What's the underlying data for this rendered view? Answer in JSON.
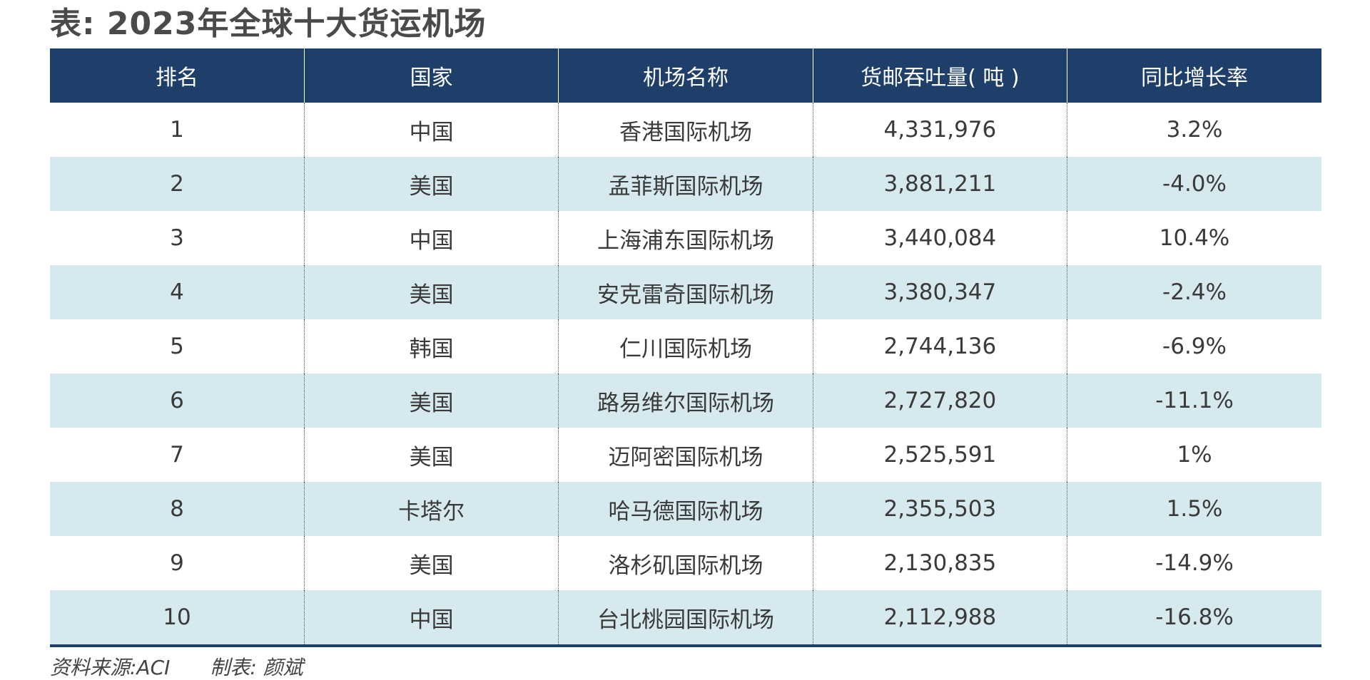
{
  "title": "表: 2023年全球十大货运机场",
  "table": {
    "headers": [
      "排名",
      "国家",
      "机场名称",
      "货邮吞吐量( 吨 )",
      "同比增长率"
    ],
    "rows": [
      [
        "1",
        "中国",
        "香港国际机场",
        "4,331,976",
        "3.2%"
      ],
      [
        "2",
        "美国",
        "孟菲斯国际机场",
        "3,881,211",
        "-4.0%"
      ],
      [
        "3",
        "中国",
        "上海浦东国际机场",
        "3,440,084",
        "10.4%"
      ],
      [
        "4",
        "美国",
        "安克雷奇国际机场",
        "3,380,347",
        "-2.4%"
      ],
      [
        "5",
        "韩国",
        "仁川国际机场",
        "2,744,136",
        "-6.9%"
      ],
      [
        "6",
        "美国",
        "路易维尔国际机场",
        "2,727,820",
        "-11.1%"
      ],
      [
        "7",
        "美国",
        "迈阿密国际机场",
        "2,525,591",
        "1%"
      ],
      [
        "8",
        "卡塔尔",
        "哈马德国际机场",
        "2,355,503",
        "1.5%"
      ],
      [
        "9",
        "美国",
        "洛杉矶国际机场",
        "2,130,835",
        "-14.9%"
      ],
      [
        "10",
        "中国",
        "台北桃园国际机场",
        "2,112,988",
        "-16.8%"
      ]
    ]
  },
  "footer": {
    "source": "资料来源:ACI",
    "author": "制表: 颜斌"
  },
  "colors": {
    "header_bg": "#1f3f6b",
    "alt_row_bg": "#d6e9ee"
  }
}
